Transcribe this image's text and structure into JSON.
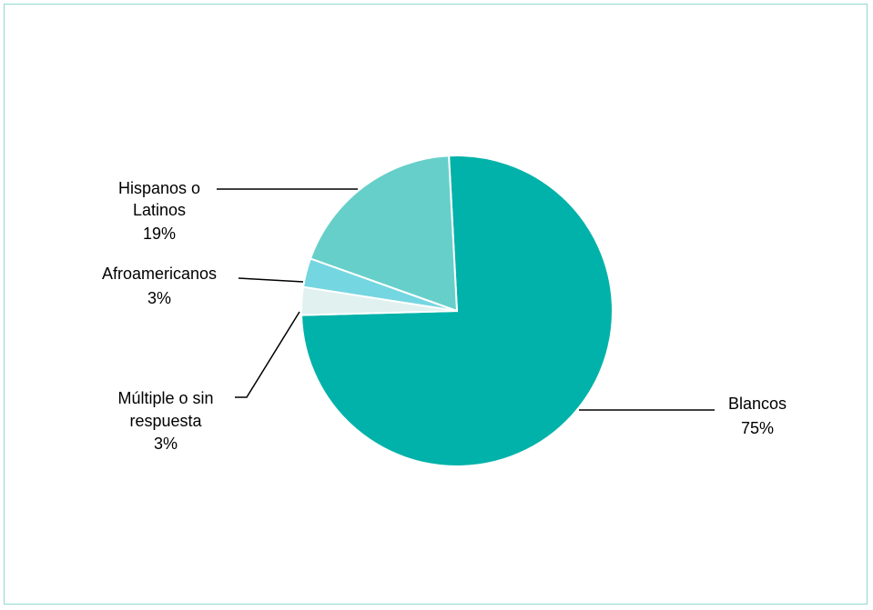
{
  "chart_data": {
    "type": "pie",
    "title": "",
    "start_angle_deg": -3,
    "direction": "clockwise",
    "slices": [
      {
        "name": "Blancos",
        "percent_label": "75%",
        "value": 75.4,
        "color": "#00b2a9"
      },
      {
        "name": "Múltiple o sin respuesta",
        "percent_label": "3%",
        "value": 2.9,
        "color": "#e0f1f0"
      },
      {
        "name": "Afroamericanos",
        "percent_label": "3%",
        "value": 3.0,
        "color": "#74d6e0"
      },
      {
        "name": "Hispanos o Latinos",
        "percent_label": "19%",
        "value": 18.7,
        "color": "#66cfca"
      }
    ],
    "labels": {
      "blancos": {
        "line1": "Blancos",
        "line2": "75%"
      },
      "multiple": {
        "line1": "Múltiple o sin",
        "line2": "respuesta",
        "line3": "3%"
      },
      "afro": {
        "line1": "Afroamericanos",
        "line2": "3%"
      },
      "hispanos": {
        "line1": "Hispanos o",
        "line2": "Latinos",
        "line3": "19%"
      }
    }
  }
}
